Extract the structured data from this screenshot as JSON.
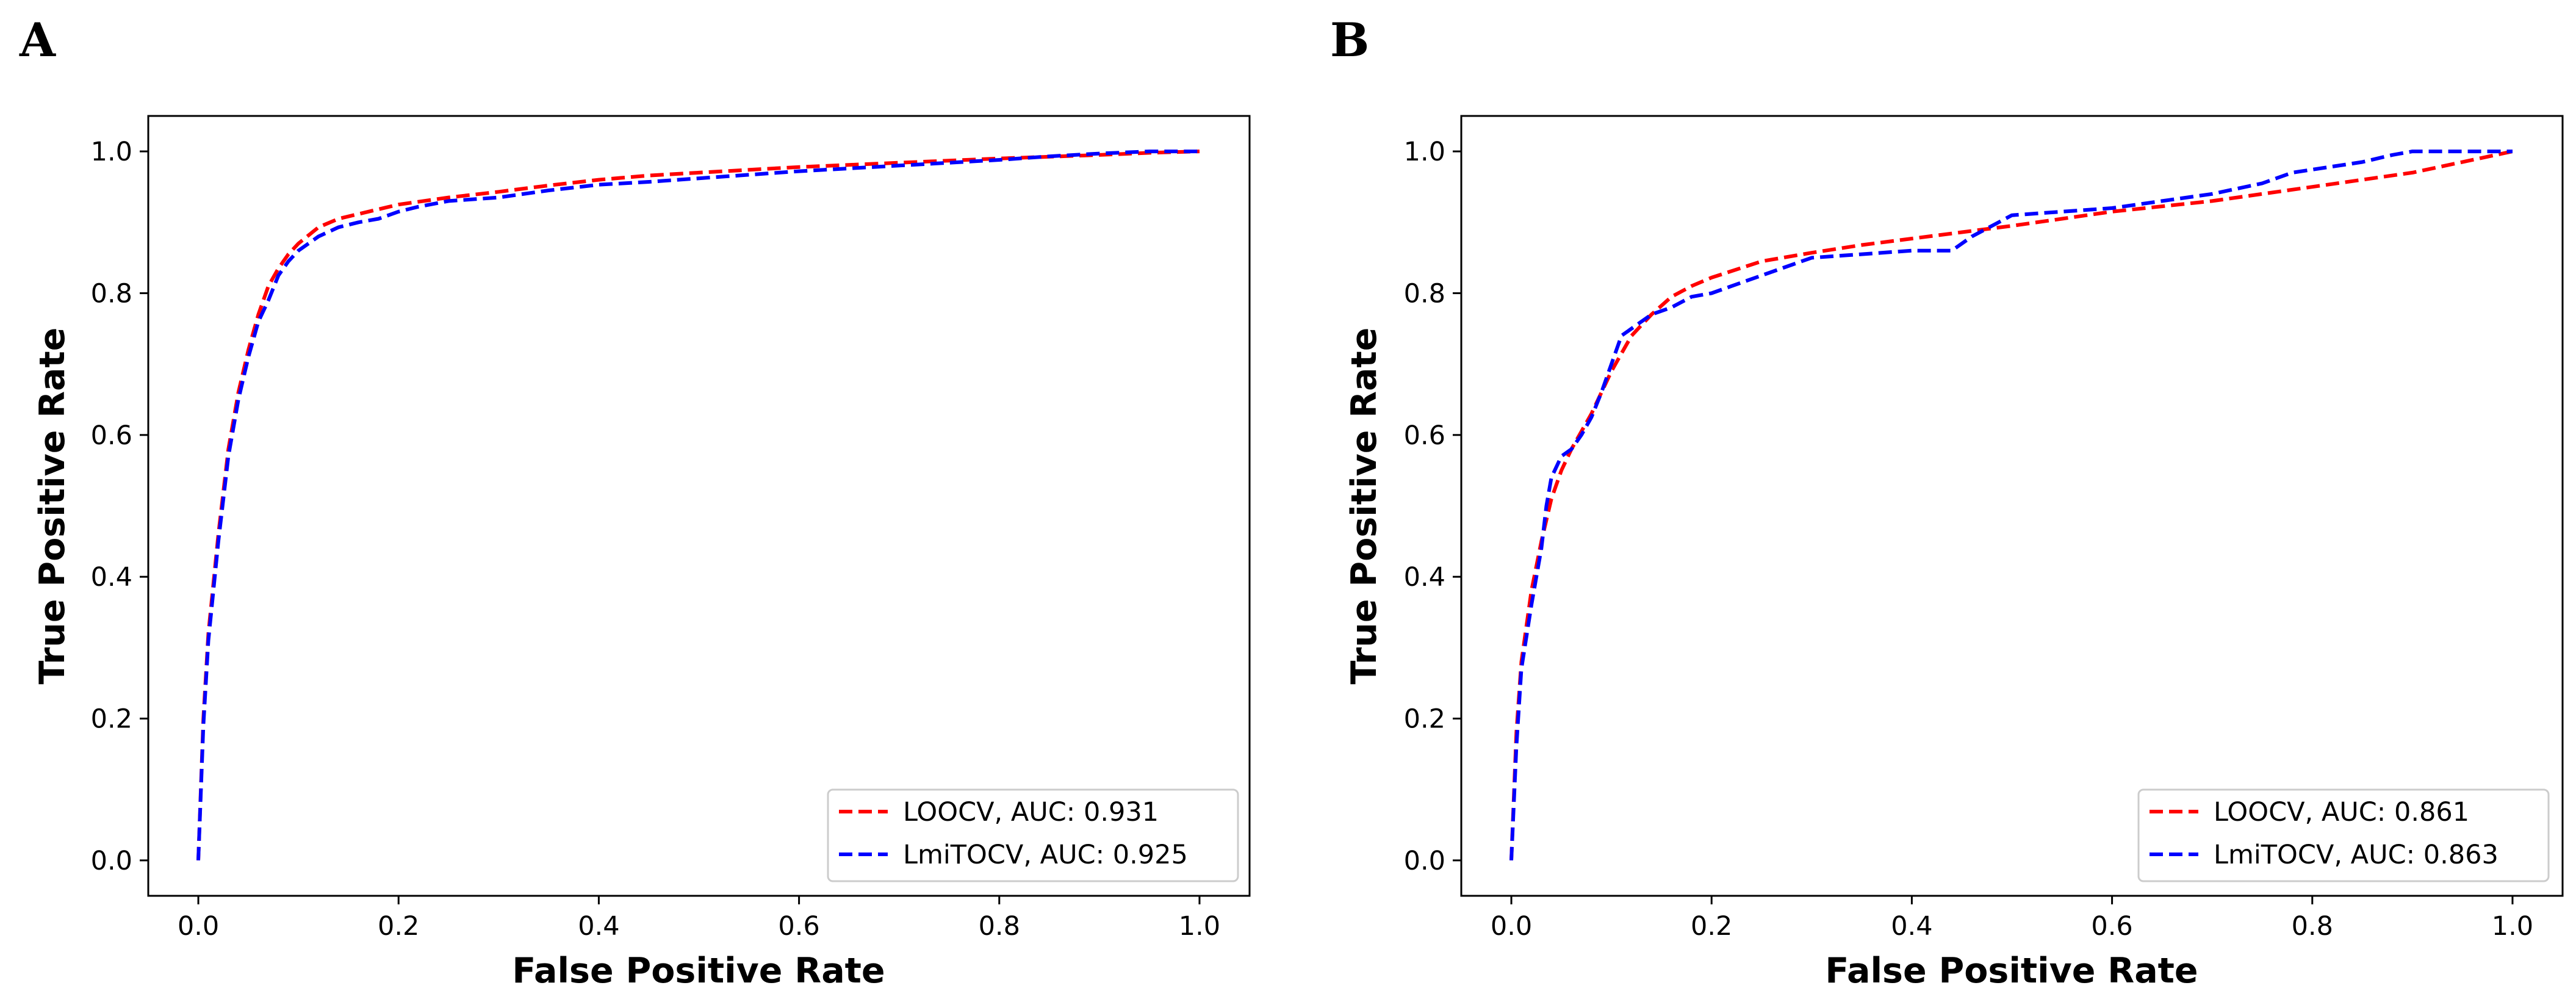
{
  "chart_data": [
    {
      "type": "line",
      "panel_label": "A",
      "title": "",
      "xlabel": "False Positive Rate",
      "ylabel": "True Positive Rate",
      "xlim": [
        -0.05,
        1.05
      ],
      "ylim": [
        -0.05,
        1.05
      ],
      "xticks": [
        0.0,
        0.2,
        0.4,
        0.6,
        0.8,
        1.0
      ],
      "yticks": [
        0.0,
        0.2,
        0.4,
        0.6,
        0.8,
        1.0
      ],
      "xtick_labels": [
        "0.0",
        "0.2",
        "0.4",
        "0.6",
        "0.8",
        "1.0"
      ],
      "ytick_labels": [
        "0.0",
        "0.2",
        "0.4",
        "0.6",
        "0.8",
        "1.0"
      ],
      "grid": false,
      "legend_position": "lower-right",
      "series": [
        {
          "name": "LOOCV, AUC: 0.931",
          "color": "#ff0000",
          "x": [
            0,
            0.005,
            0.01,
            0.02,
            0.03,
            0.04,
            0.05,
            0.06,
            0.07,
            0.08,
            0.09,
            0.1,
            0.12,
            0.14,
            0.17,
            0.2,
            0.25,
            0.3,
            0.35,
            0.4,
            0.45,
            0.5,
            0.6,
            0.7,
            0.8,
            0.9,
            0.95,
            1.0
          ],
          "y": [
            0,
            0.2,
            0.32,
            0.46,
            0.58,
            0.66,
            0.72,
            0.77,
            0.81,
            0.835,
            0.855,
            0.87,
            0.893,
            0.905,
            0.915,
            0.925,
            0.935,
            0.943,
            0.952,
            0.96,
            0.966,
            0.97,
            0.978,
            0.984,
            0.99,
            0.995,
            0.998,
            1.0
          ]
        },
        {
          "name": "LmiTOCV, AUC: 0.925",
          "color": "#0000ff",
          "x": [
            0,
            0.005,
            0.01,
            0.02,
            0.03,
            0.04,
            0.05,
            0.06,
            0.07,
            0.08,
            0.09,
            0.1,
            0.12,
            0.14,
            0.16,
            0.18,
            0.19,
            0.2,
            0.22,
            0.25,
            0.3,
            0.35,
            0.4,
            0.45,
            0.5,
            0.6,
            0.7,
            0.8,
            0.85,
            0.9,
            0.95,
            1.0
          ],
          "y": [
            0,
            0.19,
            0.31,
            0.45,
            0.57,
            0.65,
            0.71,
            0.76,
            0.79,
            0.825,
            0.845,
            0.86,
            0.88,
            0.893,
            0.9,
            0.905,
            0.91,
            0.915,
            0.922,
            0.93,
            0.935,
            0.945,
            0.953,
            0.957,
            0.962,
            0.972,
            0.98,
            0.988,
            0.993,
            0.997,
            1.0,
            1.0
          ]
        }
      ]
    },
    {
      "type": "line",
      "panel_label": "B",
      "title": "",
      "xlabel": "False Positive Rate",
      "ylabel": "True Positive Rate",
      "xlim": [
        -0.05,
        1.05
      ],
      "ylim": [
        -0.05,
        1.05
      ],
      "xticks": [
        0.0,
        0.2,
        0.4,
        0.6,
        0.8,
        1.0
      ],
      "yticks": [
        0.0,
        0.2,
        0.4,
        0.6,
        0.8,
        1.0
      ],
      "xtick_labels": [
        "0.0",
        "0.2",
        "0.4",
        "0.6",
        "0.8",
        "1.0"
      ],
      "ytick_labels": [
        "0.0",
        "0.2",
        "0.4",
        "0.6",
        "0.8",
        "1.0"
      ],
      "grid": false,
      "legend_position": "lower-right",
      "series": [
        {
          "name": "LOOCV, AUC: 0.861",
          "color": "#ff0000",
          "x": [
            0,
            0.005,
            0.01,
            0.02,
            0.03,
            0.04,
            0.05,
            0.06,
            0.08,
            0.1,
            0.12,
            0.14,
            0.16,
            0.18,
            0.2,
            0.25,
            0.3,
            0.35,
            0.4,
            0.45,
            0.5,
            0.55,
            0.6,
            0.7,
            0.8,
            0.9,
            1.0
          ],
          "y": [
            0,
            0.18,
            0.28,
            0.38,
            0.45,
            0.51,
            0.55,
            0.58,
            0.63,
            0.69,
            0.74,
            0.77,
            0.795,
            0.81,
            0.822,
            0.845,
            0.857,
            0.868,
            0.877,
            0.886,
            0.895,
            0.905,
            0.915,
            0.93,
            0.95,
            0.97,
            1.0
          ]
        },
        {
          "name": "LmiTOCV, AUC: 0.863",
          "color": "#0000ff",
          "x": [
            0,
            0.005,
            0.01,
            0.02,
            0.03,
            0.035,
            0.04,
            0.05,
            0.06,
            0.07,
            0.08,
            0.09,
            0.1,
            0.11,
            0.12,
            0.14,
            0.16,
            0.18,
            0.2,
            0.22,
            0.24,
            0.28,
            0.3,
            0.35,
            0.4,
            0.44,
            0.46,
            0.48,
            0.5,
            0.6,
            0.65,
            0.7,
            0.75,
            0.78,
            0.85,
            0.88,
            0.9,
            0.95,
            1.0
          ],
          "y": [
            0,
            0.16,
            0.27,
            0.36,
            0.44,
            0.5,
            0.54,
            0.57,
            0.58,
            0.6,
            0.625,
            0.66,
            0.7,
            0.74,
            0.75,
            0.77,
            0.78,
            0.795,
            0.8,
            0.81,
            0.82,
            0.84,
            0.85,
            0.855,
            0.86,
            0.86,
            0.88,
            0.895,
            0.91,
            0.92,
            0.93,
            0.94,
            0.955,
            0.97,
            0.985,
            0.995,
            1.0,
            1.0,
            1.0
          ]
        }
      ]
    }
  ]
}
